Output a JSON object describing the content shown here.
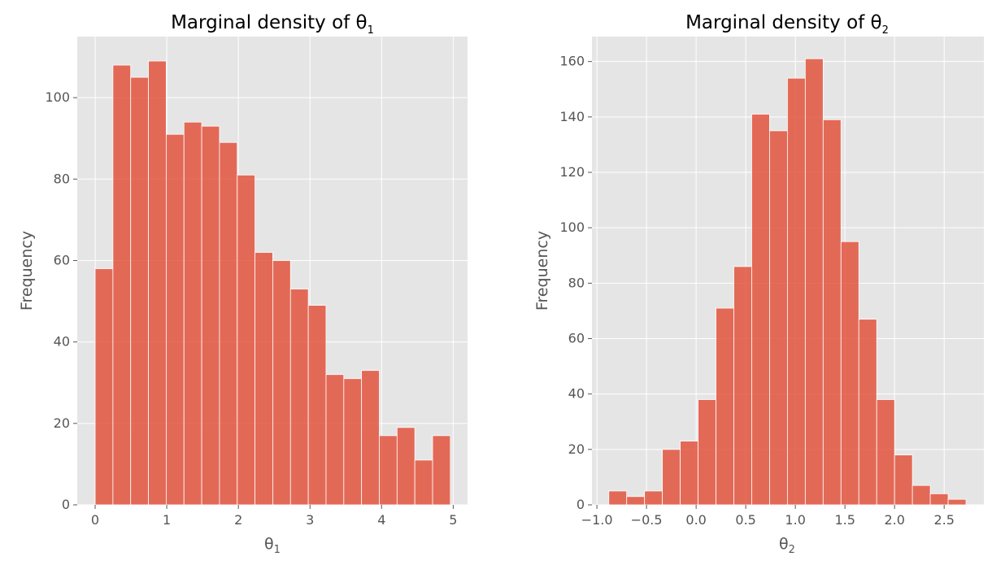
{
  "chart_data": [
    {
      "type": "bar",
      "title": "Marginal density of θ",
      "title_subscript": "1",
      "xlabel": "θ",
      "xlabel_subscript": "1",
      "ylabel": "Frequency",
      "xlim": [
        -0.25,
        5.2
      ],
      "ylim": [
        0,
        115
      ],
      "xticks": [
        0,
        1,
        2,
        3,
        4,
        5
      ],
      "xtick_labels": [
        "0",
        "1",
        "2",
        "3",
        "4",
        "5"
      ],
      "yticks": [
        0,
        20,
        40,
        60,
        80,
        100
      ],
      "ytick_labels": [
        "0",
        "20",
        "40",
        "60",
        "80",
        "100"
      ],
      "bin_edges": [
        0.0,
        0.248,
        0.496,
        0.744,
        0.992,
        1.24,
        1.488,
        1.736,
        1.984,
        2.232,
        2.48,
        2.728,
        2.976,
        3.224,
        3.472,
        3.72,
        3.968,
        4.216,
        4.464,
        4.712,
        4.96
      ],
      "values": [
        58,
        108,
        105,
        109,
        91,
        94,
        93,
        89,
        81,
        62,
        60,
        53,
        49,
        32,
        31,
        33,
        17,
        19,
        11,
        17
      ],
      "grid": true
    },
    {
      "type": "bar",
      "title": "Marginal density of θ",
      "title_subscript": "2",
      "xlabel": "θ",
      "xlabel_subscript": "2",
      "ylabel": "Frequency",
      "xlim": [
        -1.05,
        2.9
      ],
      "ylim": [
        0,
        169
      ],
      "xticks": [
        -1.0,
        -0.5,
        0.0,
        0.5,
        1.0,
        1.5,
        2.0,
        2.5
      ],
      "xtick_labels": [
        "−1.0",
        "−0.5",
        "0.0",
        "0.5",
        "1.0",
        "1.5",
        "2.0",
        "2.5"
      ],
      "yticks": [
        0,
        20,
        40,
        60,
        80,
        100,
        120,
        140,
        160
      ],
      "ytick_labels": [
        "0",
        "20",
        "40",
        "60",
        "80",
        "100",
        "120",
        "140",
        "160"
      ],
      "bin_edges": [
        -0.88,
        -0.7,
        -0.52,
        -0.34,
        -0.16,
        0.02,
        0.2,
        0.38,
        0.56,
        0.74,
        0.92,
        1.1,
        1.28,
        1.46,
        1.64,
        1.82,
        2.0,
        2.18,
        2.36,
        2.54,
        2.72
      ],
      "values": [
        5,
        3,
        5,
        20,
        23,
        38,
        71,
        86,
        141,
        135,
        154,
        161,
        139,
        95,
        67,
        38,
        18,
        7,
        4,
        2
      ],
      "grid": true
    }
  ],
  "colors": {
    "bar": "#e24a33",
    "bar_opacity": 0.8,
    "axes_bg": "#e5e5e5",
    "grid": "#ffffff",
    "tick_text": "#555555"
  }
}
